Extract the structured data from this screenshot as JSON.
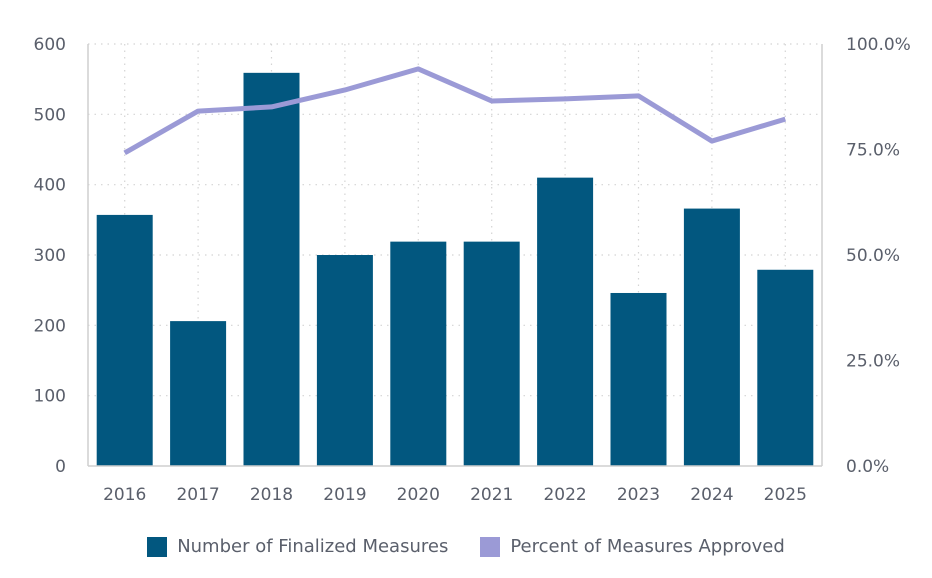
{
  "chart_data": {
    "type": "bar",
    "title": "",
    "xlabel": "",
    "ylabel": "",
    "categories": [
      "2016",
      "2017",
      "2018",
      "2019",
      "2020",
      "2021",
      "2022",
      "2023",
      "2024",
      "2025"
    ],
    "series": [
      {
        "name": "Number of Finalized Measures",
        "type": "bar",
        "axis": "left",
        "color": "#02577f",
        "values": [
          357,
          206,
          559,
          300,
          319,
          319,
          410,
          246,
          366,
          279
        ]
      },
      {
        "name": "Percent of Measures Approved",
        "type": "line",
        "axis": "right",
        "color": "#9b9ad6",
        "values": [
          74.2,
          84.1,
          85.1,
          89.1,
          94.1,
          86.5,
          87.0,
          87.7,
          77.0,
          82.2
        ]
      }
    ],
    "y_left": {
      "ylim": [
        0,
        600
      ],
      "ticks": [
        0,
        100,
        200,
        300,
        400,
        500,
        600
      ],
      "tick_labels": [
        "0",
        "100",
        "200",
        "300",
        "400",
        "500",
        "600"
      ]
    },
    "y_right": {
      "ylim": [
        0,
        100
      ],
      "ticks": [
        0,
        25,
        50,
        75,
        100
      ],
      "tick_labels": [
        "0.0%",
        "25.0%",
        "50.0%",
        "75.0%",
        "100.0%"
      ]
    },
    "grid": true,
    "legend": "bottom-center"
  }
}
